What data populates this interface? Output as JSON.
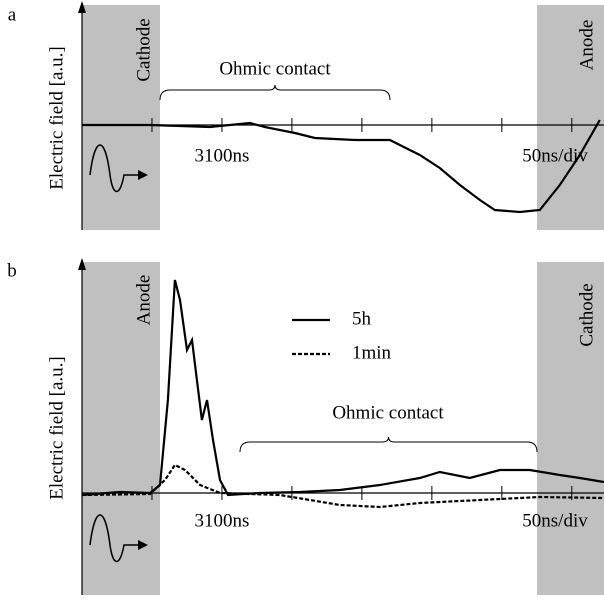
{
  "chart_data": [
    {
      "type": "line",
      "panel": "a",
      "y_label": "Electric field [a.u.]",
      "left_region": "Cathode",
      "right_region": "Anode",
      "bracket_label": "Ohmic contact",
      "time_label": "3100ns",
      "scale_label": "50ns/div",
      "xlim": [
        0,
        373
      ],
      "xticks": [
        50,
        100,
        150,
        200,
        250,
        300,
        350
      ],
      "ylim": [
        -1.05,
        1.2
      ],
      "series": [
        {
          "color": "#000000",
          "dash": false,
          "x": [
            0,
            48.6,
            91.4,
            120,
            130.7,
            152.1,
            166.4,
            195,
            220,
            227.1,
            241.4,
            255.7,
            270,
            284.3,
            295,
            312.9,
            327.1,
            341.4,
            355.7,
            370
          ],
          "values": [
            0,
            0,
            -0.02,
            0.02,
            -0.02,
            -0.08,
            -0.13,
            -0.15,
            -0.15,
            -0.2,
            -0.3,
            -0.43,
            -0.6,
            -0.75,
            -0.85,
            -0.87,
            -0.85,
            -0.6,
            -0.3,
            0.05
          ]
        }
      ]
    },
    {
      "type": "line",
      "panel": "b",
      "y_label": "Electric field [a.u.]",
      "left_region": "Anode",
      "right_region": "Cathode",
      "bracket_label": "Ohmic contact",
      "time_label": "3100ns",
      "scale_label": "50ns/div",
      "xlim": [
        0,
        373
      ],
      "xticks": [
        50,
        100,
        150,
        200,
        250,
        300,
        350
      ],
      "ylim": [
        -1.02,
        2.31
      ],
      "series": [
        {
          "name": "5h",
          "color": "#000000",
          "dash": false,
          "x": [
            0,
            27.1,
            48.6,
            55.7,
            61.4,
            66.4,
            70,
            75,
            78.6,
            82.1,
            85.7,
            89.3,
            93.6,
            98.6,
            104.3,
            127.1,
            155.7,
            184.3,
            212.9,
            241.4,
            255.7,
            277.1,
            298.6,
            320,
            341.4,
            355.7,
            372.9
          ],
          "values": [
            -0.02,
            0.01,
            0,
            0.08,
            0.93,
            2.13,
            1.93,
            1.43,
            1.53,
            1.13,
            0.73,
            0.93,
            0.53,
            0.13,
            -0.02,
            0,
            0.01,
            0.03,
            0.08,
            0.15,
            0.21,
            0.15,
            0.23,
            0.23,
            0.18,
            0.15,
            0.11
          ]
        },
        {
          "name": "1min",
          "color": "#000000",
          "dash": true,
          "x": [
            0,
            48.6,
            59.3,
            66.4,
            73.6,
            84.3,
            98.6,
            141.4,
            184.3,
            212.9,
            241.4,
            284.3,
            327.1,
            372.9
          ],
          "values": [
            -0.02,
            -0.01,
            0.13,
            0.28,
            0.23,
            0.08,
            0,
            -0.02,
            -0.12,
            -0.14,
            -0.1,
            -0.07,
            -0.04,
            -0.05
          ]
        }
      ]
    }
  ]
}
